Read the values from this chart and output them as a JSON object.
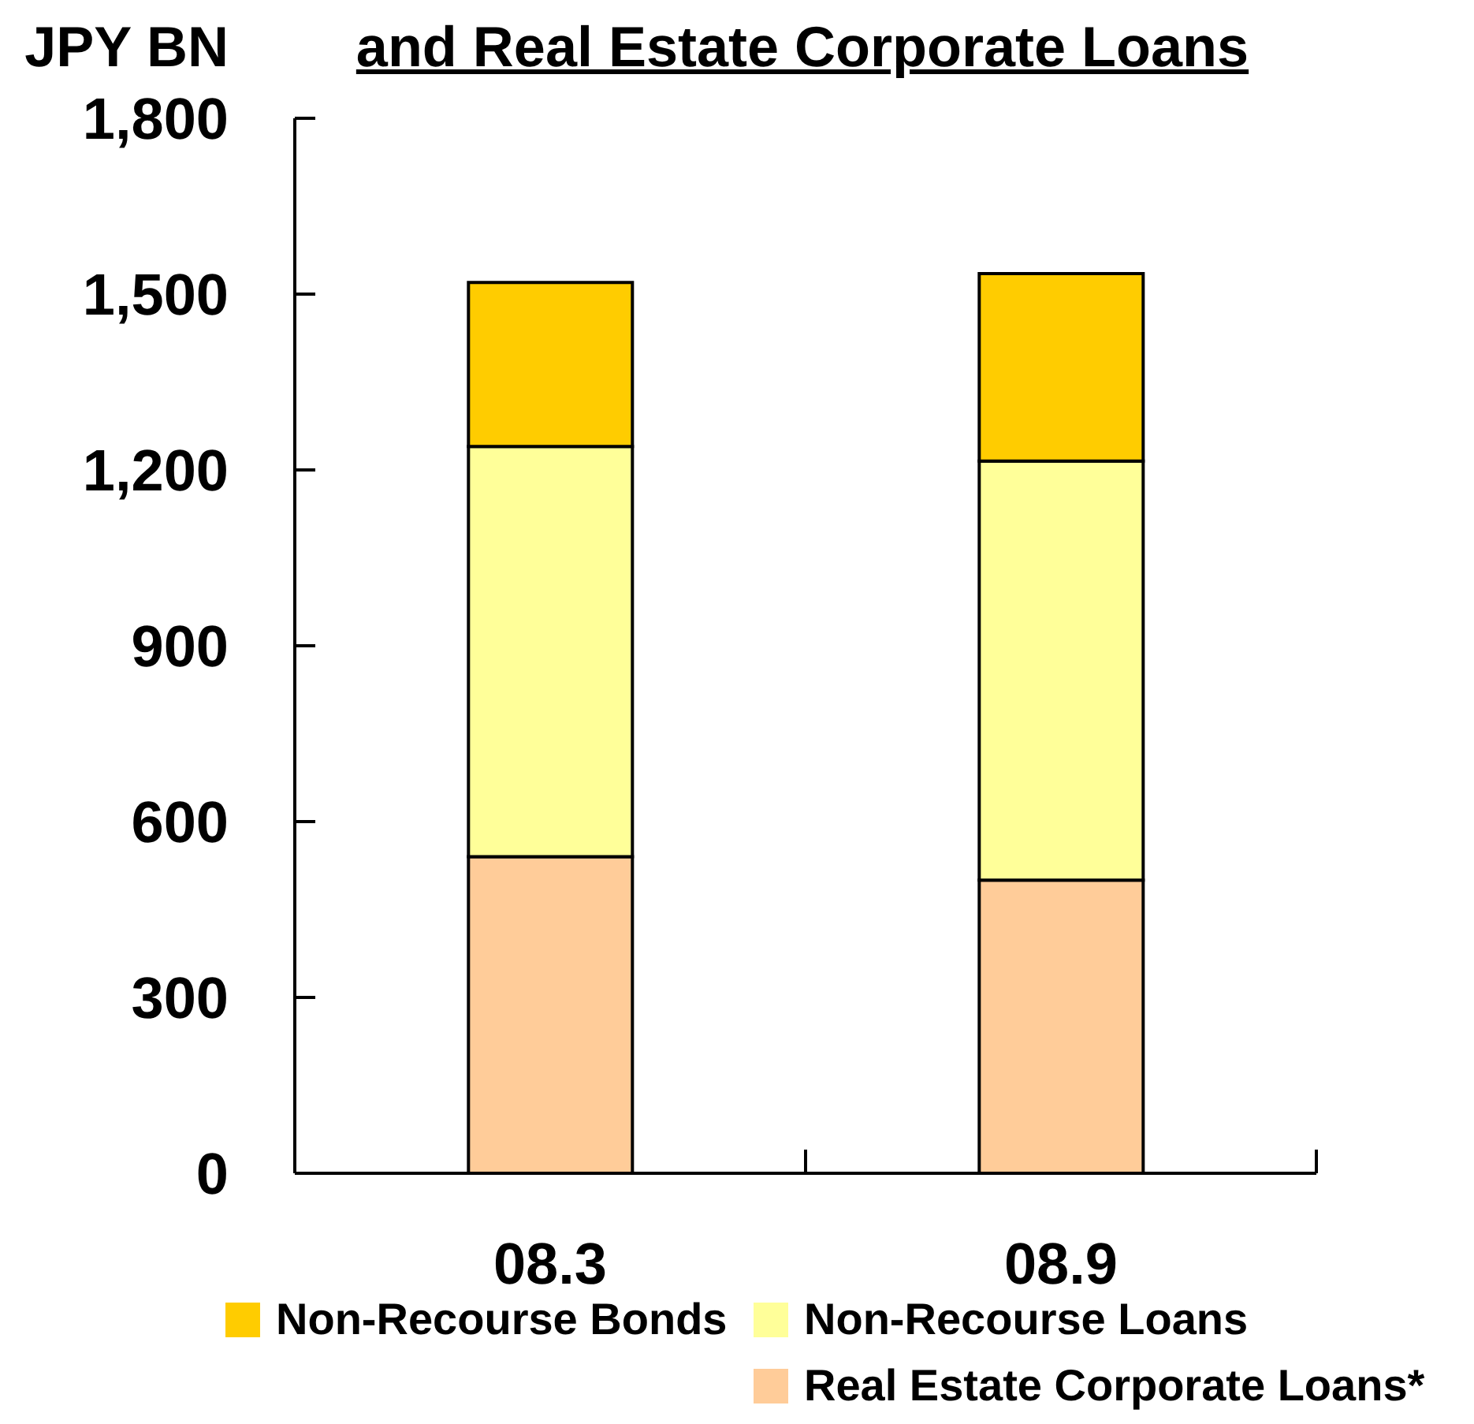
{
  "chart_data": {
    "type": "bar",
    "title": "and Real Estate Corporate Loans",
    "ylabel": "JPY BN",
    "categories": [
      "08.3",
      "08.9"
    ],
    "stacked": true,
    "series": [
      {
        "name": "Real Estate Corporate Loans*",
        "color": "#ffcc99",
        "values": [
          540,
          500
        ]
      },
      {
        "name": "Non-Recourse Loans",
        "color": "#ffff99",
        "values": [
          700,
          715
        ]
      },
      {
        "name": "Non-Recourse Bonds",
        "color": "#ffcc00",
        "values": [
          280,
          320
        ]
      }
    ],
    "ylim": [
      0,
      1800
    ],
    "yticks": [
      0,
      300,
      600,
      900,
      {
        "value": 1200,
        "label": "1,200"
      },
      {
        "value": 1500,
        "label": "1,500"
      },
      {
        "value": 1800,
        "label": "1,800"
      }
    ],
    "legend": "bottom"
  }
}
